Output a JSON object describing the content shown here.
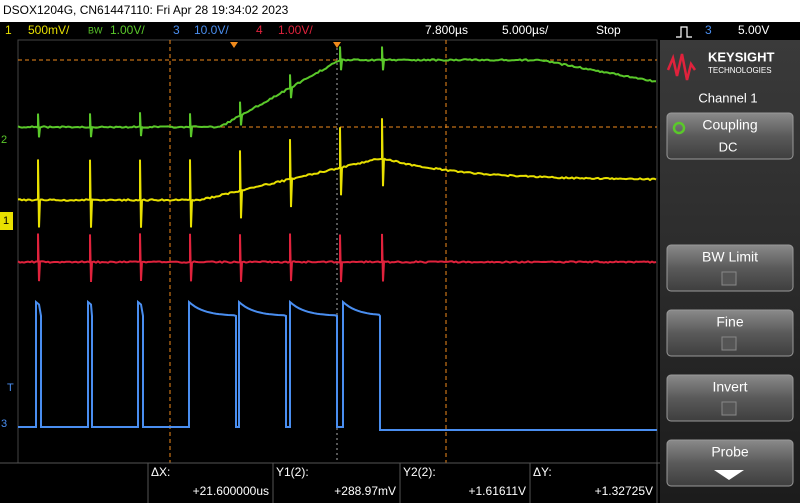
{
  "header": {
    "title": "DSOX1204G, CN61447110: Fri Apr 28 19:34:02 2023"
  },
  "channel_bar": {
    "ch1": {
      "number": "1",
      "scale": "500mV/"
    },
    "ch2": {
      "label": "BW",
      "scale": "1.00V/"
    },
    "ch3": {
      "number": "3",
      "scale": "10.0V/"
    },
    "ch4": {
      "number": "4",
      "scale": "1.00V/"
    },
    "delay": "7.800µs",
    "timebase": "5.000µs/",
    "run_state": "Stop",
    "trigger_source": "3",
    "trigger_level": "5.00V"
  },
  "channel_markers": {
    "ch2": "2",
    "ch1": "1",
    "trigger": "T",
    "ch3": "3"
  },
  "softkey_panel": {
    "brand": "KEYSIGHT",
    "brand_sub": "TECHNOLOGIES",
    "menu_title": "Channel 1",
    "softkeys": [
      {
        "label": "Coupling",
        "value": "DC"
      },
      {
        "label": "BW Limit"
      },
      {
        "label": "Fine"
      },
      {
        "label": "Invert"
      },
      {
        "label": "Probe"
      }
    ]
  },
  "measurements": [
    {
      "label": "ΔX:",
      "value": "+21.600000us"
    },
    {
      "label": "Y1(2):",
      "value": "+288.97mV"
    },
    {
      "label": "Y2(2):",
      "value": "+1.61611V"
    },
    {
      "label": "ΔY:",
      "value": "+1.32725V"
    }
  ]
}
